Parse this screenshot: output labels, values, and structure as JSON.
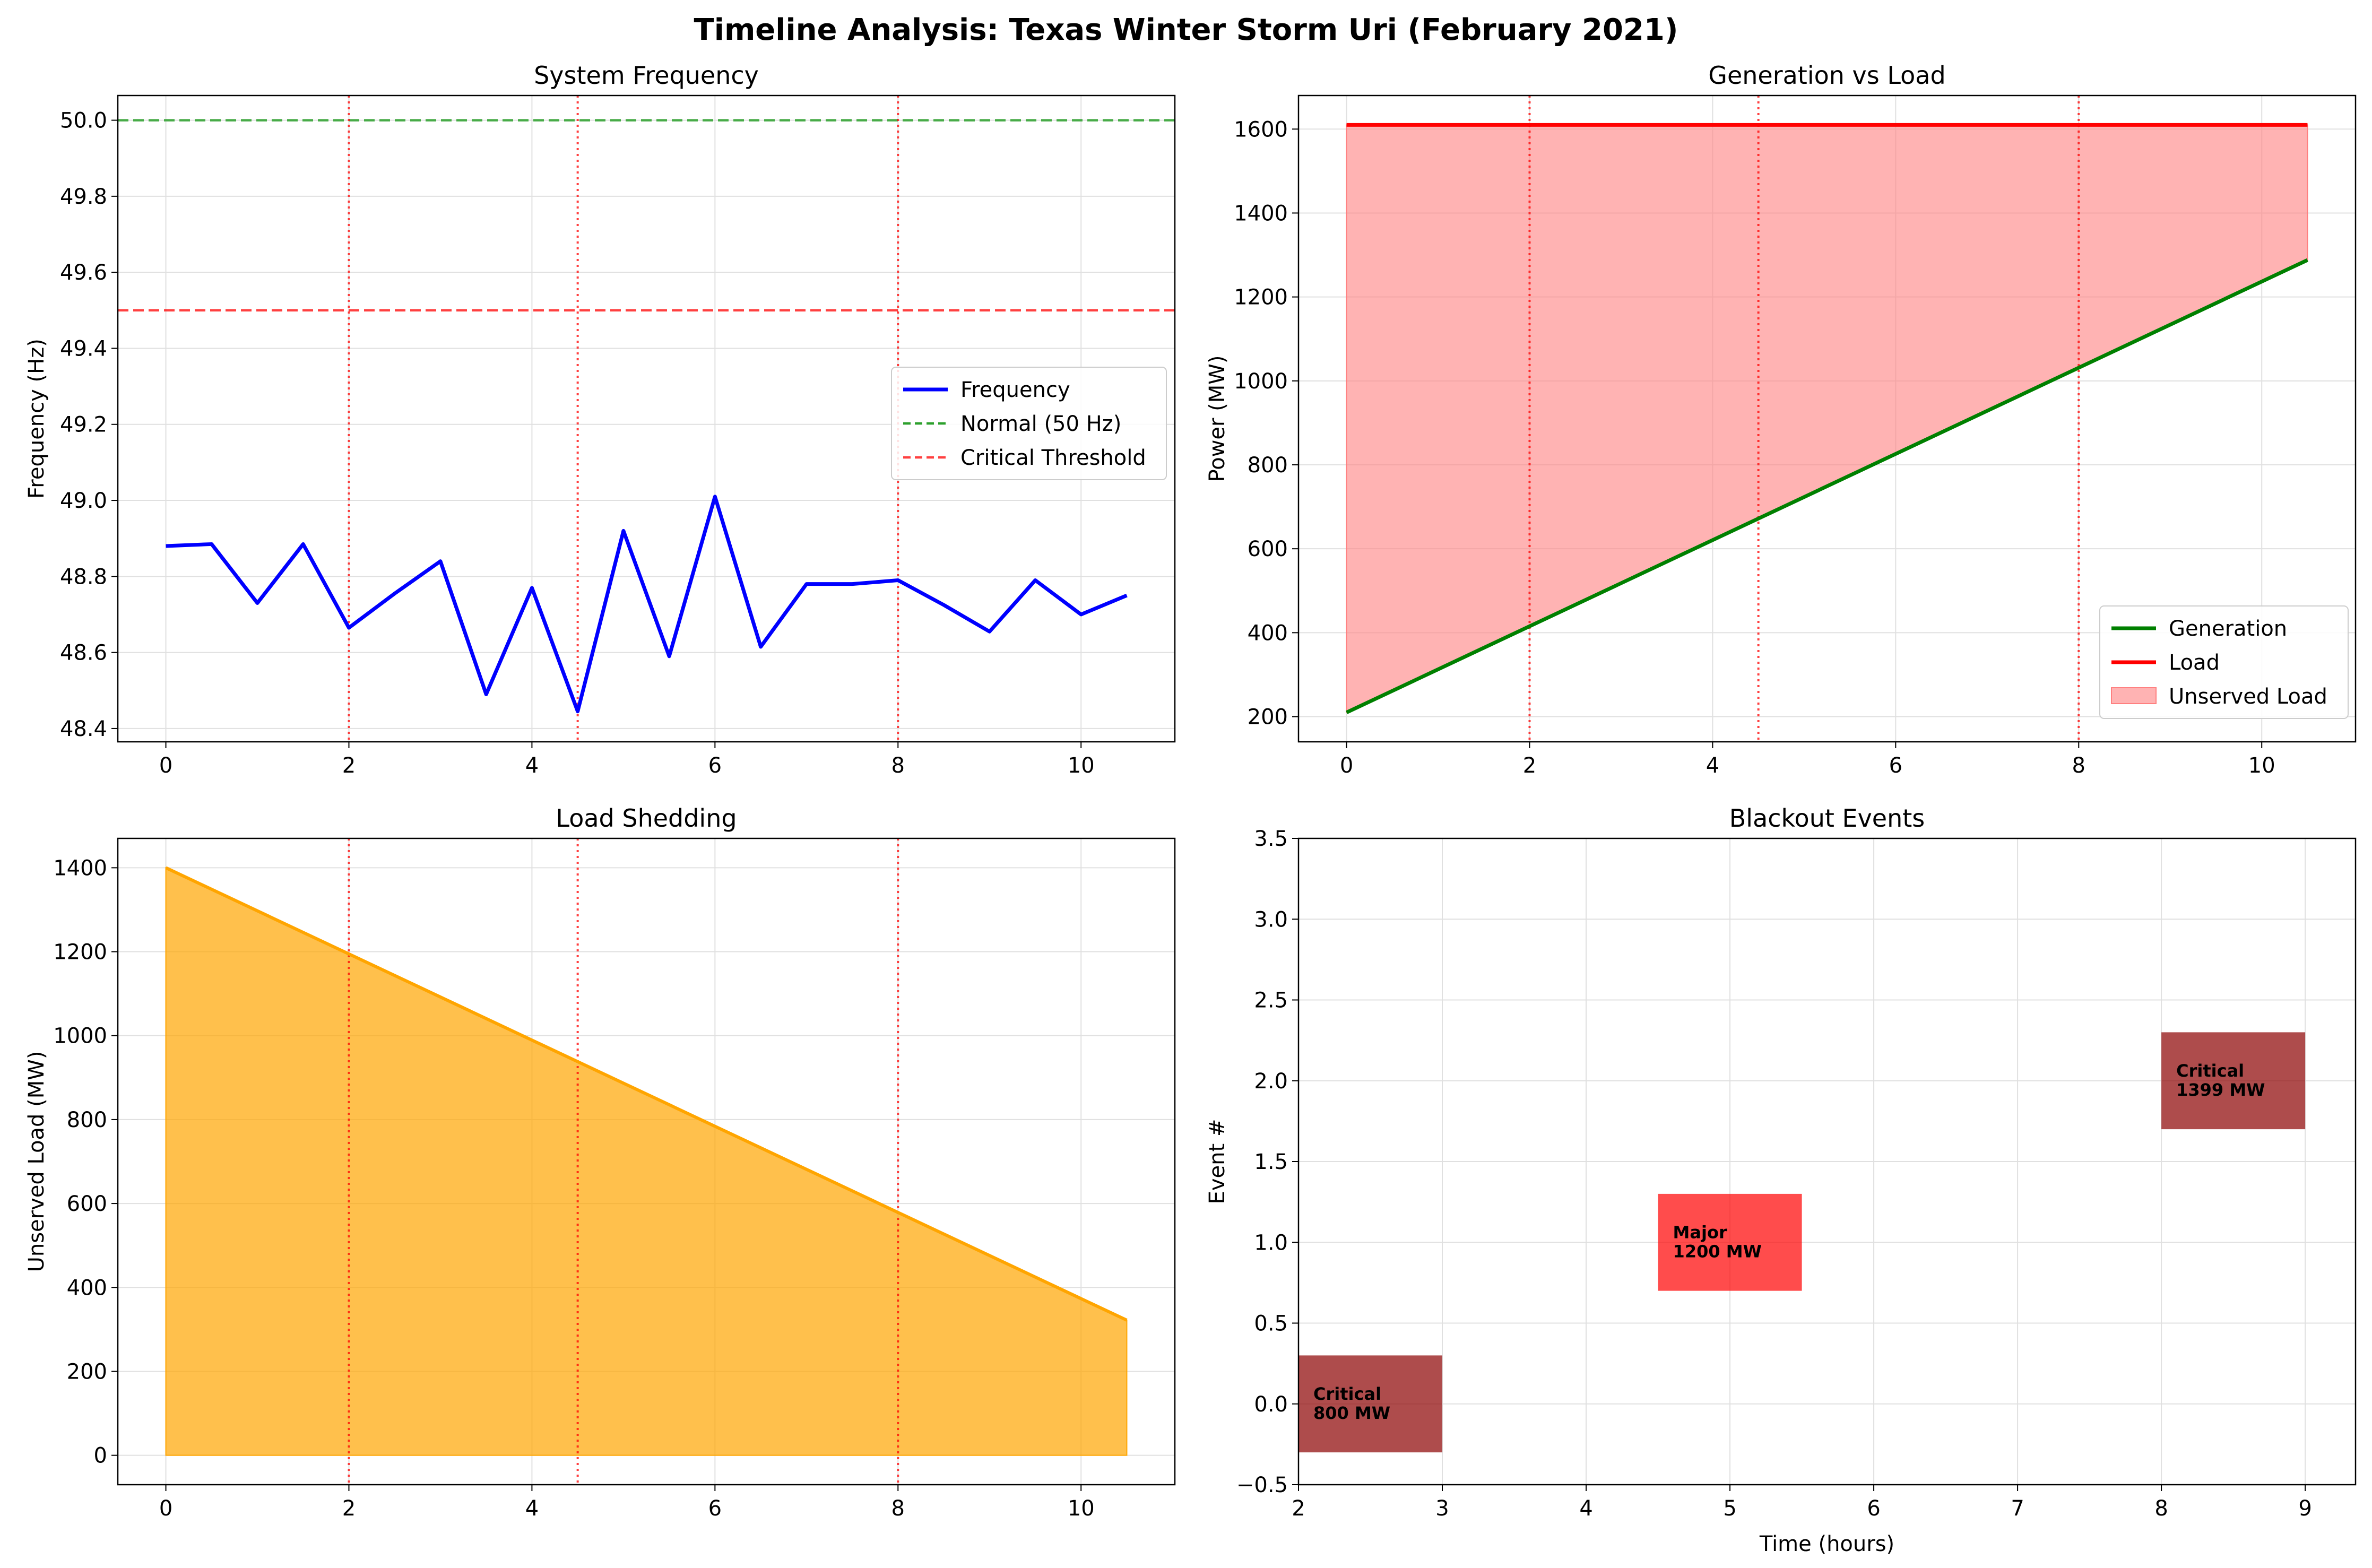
{
  "figure": {
    "title": "Timeline Analysis: Texas Winter Storm Uri (February 2021)"
  },
  "colors": {
    "frequency": "#0000ff",
    "normal": "#2ca02c",
    "critical_line": "#ff0000",
    "event_marker": "#ff0000",
    "generation": "#008000",
    "load": "#ff0000",
    "unserved_fill": "#ff8080",
    "shedding": "#ffa500",
    "critical_event": "#8b0000",
    "major_event": "#ff0000",
    "grid": "#e0e0e0"
  },
  "chart_data": [
    {
      "id": "frequency",
      "type": "line",
      "title": "System Frequency",
      "xlabel": "",
      "ylabel": "Frequency (Hz)",
      "xlim": [
        -0.525,
        11.025
      ],
      "ylim": [
        48.365,
        50.065
      ],
      "xticks": [
        0,
        2,
        4,
        6,
        8,
        10
      ],
      "yticks": [
        48.4,
        48.6,
        48.8,
        49.0,
        49.2,
        49.4,
        49.6,
        49.8,
        50.0
      ],
      "ytick_labels": [
        "48.4",
        "48.6",
        "48.8",
        "49.0",
        "49.2",
        "49.4",
        "49.6",
        "49.8",
        "50.0"
      ],
      "grid": true,
      "legend_position": "center-right",
      "x": [
        0,
        0.5,
        1,
        1.5,
        2,
        2.5,
        3,
        3.5,
        4,
        4.5,
        5,
        5.5,
        6,
        6.5,
        7,
        7.5,
        8,
        8.5,
        9,
        9.5,
        10,
        10.5
      ],
      "series": [
        {
          "name": "Frequency",
          "values": [
            48.88,
            48.885,
            48.73,
            48.885,
            48.665,
            48.755,
            48.84,
            48.49,
            48.77,
            48.445,
            48.92,
            48.59,
            49.01,
            48.615,
            48.78,
            48.78,
            48.79,
            48.725,
            48.655,
            48.79,
            48.7,
            48.75
          ]
        }
      ],
      "reference_lines": [
        {
          "name": "Normal (50 Hz)",
          "y": 50.0
        },
        {
          "name": "Critical Threshold",
          "y": 49.5
        }
      ],
      "event_markers_x": [
        2,
        4.5,
        8
      ]
    },
    {
      "id": "generation",
      "type": "line",
      "title": "Generation vs Load",
      "xlabel": "",
      "ylabel": "Power (MW)",
      "xlim": [
        -0.525,
        11.025
      ],
      "ylim": [
        140,
        1680
      ],
      "xticks": [
        0,
        2,
        4,
        6,
        8,
        10
      ],
      "yticks": [
        200,
        400,
        600,
        800,
        1000,
        1200,
        1400,
        1600
      ],
      "grid": true,
      "legend_position": "lower-right",
      "x": [
        0,
        10.5
      ],
      "series": [
        {
          "name": "Generation",
          "values": [
            210,
            1288
          ]
        },
        {
          "name": "Load",
          "values": [
            1610,
            1610
          ]
        },
        {
          "name": "Unserved Load"
        }
      ],
      "event_markers_x": [
        2,
        4.5,
        8
      ]
    },
    {
      "id": "shedding",
      "type": "area",
      "title": "Load Shedding",
      "xlabel": "",
      "ylabel": "Unserved Load (MW)",
      "xlim": [
        -0.525,
        11.025
      ],
      "ylim": [
        -70,
        1470
      ],
      "xticks": [
        0,
        2,
        4,
        6,
        8,
        10
      ],
      "yticks": [
        0,
        200,
        400,
        600,
        800,
        1000,
        1200,
        1400
      ],
      "grid": true,
      "x": [
        0,
        10.5
      ],
      "series": [
        {
          "values": [
            1400,
            322
          ]
        }
      ],
      "event_markers_x": [
        2,
        4.5,
        8
      ]
    },
    {
      "id": "blackouts",
      "type": "bar",
      "title": "Blackout Events",
      "xlabel": "Time (hours)",
      "ylabel": "Event #",
      "xlim": [
        2,
        9.35
      ],
      "ylim": [
        -0.5,
        3.5
      ],
      "xticks": [
        2,
        3,
        4,
        5,
        6,
        7,
        8,
        9
      ],
      "yticks": [
        -0.5,
        0.0,
        0.5,
        1.0,
        1.5,
        2.0,
        2.5,
        3.0,
        3.5
      ],
      "ytick_labels": [
        "−0.5",
        "0.0",
        "0.5",
        "1.0",
        "1.5",
        "2.0",
        "2.5",
        "3.0",
        "3.5"
      ],
      "grid": true,
      "events": [
        {
          "start": 2,
          "end": 3,
          "event": 0,
          "severity": "Critical",
          "load": "800 MW"
        },
        {
          "start": 4.5,
          "end": 5.5,
          "event": 1,
          "severity": "Major",
          "load": "1200 MW"
        },
        {
          "start": 8,
          "end": 9,
          "event": 2,
          "severity": "Critical",
          "load": "1399 MW"
        }
      ]
    }
  ]
}
